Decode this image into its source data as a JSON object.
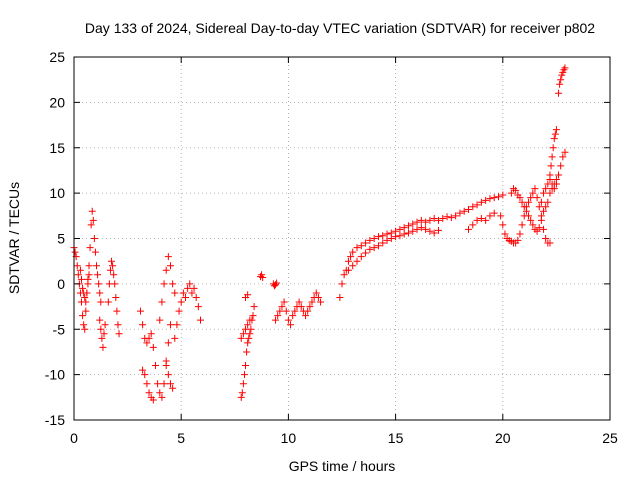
{
  "chart_data": {
    "type": "scatter",
    "title": "Day 133 of 2024, Sidereal Day-to-day VTEC variation (SDTVAR) for receiver p802",
    "xlabel": "GPS time / hours",
    "ylabel": "SDTVAR / TECUs",
    "xlim": [
      0,
      25
    ],
    "ylim": [
      -15,
      25
    ],
    "xticks": [
      0,
      5,
      10,
      15,
      20,
      25
    ],
    "yticks": [
      -15,
      -10,
      -5,
      0,
      5,
      10,
      15,
      20,
      25
    ],
    "grid": true,
    "marker": "plus",
    "color": "#ff0000",
    "segments": [
      {
        "x": [
          0.0,
          0.05,
          0.1,
          0.15,
          0.2,
          0.25,
          0.3,
          0.35,
          0.4,
          0.45,
          0.5,
          0.55,
          0.6,
          0.65,
          0.7,
          0.75,
          0.8,
          0.85,
          0.9,
          0.95,
          1.0,
          1.05,
          1.1,
          1.15,
          1.2,
          1.25
        ],
        "y": [
          4.0,
          3.5,
          3.0,
          2.0,
          1.0,
          0.0,
          -1.0,
          -2.0,
          -3.5,
          -4.5,
          -5.0,
          -3.0,
          -1.0,
          0.5,
          2.0,
          4.0,
          6.5,
          8.0,
          7.0,
          5.0,
          3.5,
          2.0,
          1.0,
          0.0,
          -1.0,
          -2.0
        ]
      },
      {
        "x": [
          0.3,
          0.35,
          0.4,
          0.45,
          0.5,
          0.55,
          0.6,
          0.65,
          0.7
        ],
        "y": [
          1.5,
          0.5,
          -0.5,
          -1.0,
          -1.5,
          -2.0,
          -1.0,
          0.0,
          1.0
        ]
      },
      {
        "x": [
          1.2,
          1.25,
          1.3,
          1.35,
          1.4,
          1.45
        ],
        "y": [
          -4.0,
          -5.0,
          -6.0,
          -7.0,
          -5.5,
          -4.5
        ]
      },
      {
        "x": [
          1.6,
          1.65,
          1.7,
          1.75,
          1.8,
          1.85,
          1.9,
          1.95,
          2.0,
          2.05,
          2.1
        ],
        "y": [
          -2.0,
          0.0,
          1.5,
          2.5,
          2.0,
          1.0,
          0.0,
          -1.5,
          -3.0,
          -4.5,
          -5.5
        ]
      },
      {
        "x": [
          3.1,
          3.2,
          3.3,
          3.4,
          3.5,
          3.6,
          3.7,
          3.8,
          3.9,
          4.0,
          4.1,
          4.2,
          4.3,
          4.4,
          4.5
        ],
        "y": [
          -3.0,
          -4.5,
          -6.0,
          -6.5,
          -6.0,
          -5.5,
          -7.0,
          -9.0,
          -11.0,
          -12.0,
          -12.5,
          -11.0,
          -8.5,
          -6.5,
          -4.5
        ]
      },
      {
        "x": [
          3.2,
          3.3,
          3.4,
          3.5,
          3.6,
          3.7
        ],
        "y": [
          -9.5,
          -10.0,
          -11.0,
          -12.0,
          -12.5,
          -12.8
        ]
      },
      {
        "x": [
          4.0,
          4.1,
          4.2,
          4.3,
          4.4,
          4.5,
          4.6,
          4.7
        ],
        "y": [
          -4.0,
          -2.0,
          0.0,
          1.5,
          3.0,
          2.0,
          0.0,
          -1.0
        ]
      },
      {
        "x": [
          4.3,
          4.4,
          4.5,
          4.6
        ],
        "y": [
          -9.0,
          -10.0,
          -11.0,
          -11.5
        ]
      },
      {
        "x": [
          4.7,
          4.8,
          4.9,
          5.0,
          5.1,
          5.2,
          5.3,
          5.4,
          5.5,
          5.6,
          5.7,
          5.8,
          5.9
        ],
        "y": [
          -6.0,
          -4.5,
          -3.0,
          -2.0,
          -1.0,
          -1.5,
          -0.5,
          0.0,
          -1.0,
          -0.5,
          -1.5,
          -2.5,
          -4.0
        ]
      },
      {
        "x": [
          7.8,
          7.85,
          7.9,
          7.95,
          8.0,
          8.05,
          8.1,
          8.15,
          8.2,
          8.25,
          8.3,
          8.35,
          8.4
        ],
        "y": [
          -12.5,
          -12.0,
          -11.0,
          -10.0,
          -9.0,
          -7.5,
          -6.5,
          -6.0,
          -5.5,
          -5.0,
          -4.0,
          -3.5,
          -2.5
        ]
      },
      {
        "x": [
          7.8,
          7.9,
          8.0,
          8.1,
          8.2
        ],
        "y": [
          -6.0,
          -5.5,
          -5.0,
          -4.5,
          -4.0
        ]
      },
      {
        "x": [
          8.0,
          8.1
        ],
        "y": [
          -1.5,
          -1.2
        ]
      },
      {
        "x": [
          8.7,
          8.75,
          8.8
        ],
        "y": [
          0.8,
          1.0,
          0.7
        ]
      },
      {
        "x": [
          9.3,
          9.35,
          9.4,
          9.45
        ],
        "y": [
          0.0,
          -0.2,
          -0.1,
          0.1
        ]
      },
      {
        "x": [
          9.4,
          9.5,
          9.6,
          9.7,
          9.8,
          9.9,
          10.0,
          10.1,
          10.2,
          10.3,
          10.4,
          10.5,
          10.6,
          10.7,
          10.8,
          10.9,
          11.0,
          11.1,
          11.2,
          11.3,
          11.4,
          11.5
        ],
        "y": [
          -4.0,
          -3.5,
          -3.0,
          -2.5,
          -2.0,
          -3.0,
          -4.0,
          -4.5,
          -3.5,
          -3.0,
          -2.5,
          -2.0,
          -2.5,
          -3.0,
          -3.5,
          -3.0,
          -2.5,
          -2.0,
          -1.5,
          -1.0,
          -1.5,
          -2.0
        ]
      },
      {
        "x": [
          12.4,
          12.5,
          12.6,
          12.7,
          12.8,
          12.9,
          13.0,
          13.2,
          13.4,
          13.6,
          13.8,
          14.0,
          14.2,
          14.4,
          14.6,
          14.8,
          15.0,
          15.2,
          15.4,
          15.6,
          15.8,
          16.0,
          16.2,
          16.4,
          16.6,
          16.8,
          17.0,
          17.2,
          17.4,
          17.6,
          17.8,
          18.0,
          18.2,
          18.4,
          18.6,
          18.8,
          19.0,
          19.2,
          19.4,
          19.6,
          19.8,
          20.0
        ],
        "y": [
          -1.5,
          0.0,
          1.0,
          1.5,
          2.5,
          3.0,
          3.5,
          4.0,
          4.2,
          4.5,
          4.8,
          5.0,
          5.2,
          5.3,
          5.5,
          5.6,
          5.8,
          6.0,
          6.2,
          6.4,
          6.6,
          6.8,
          7.0,
          6.8,
          7.0,
          7.2,
          7.0,
          7.2,
          7.4,
          7.3,
          7.5,
          7.8,
          8.0,
          8.2,
          8.5,
          8.7,
          9.0,
          9.2,
          9.4,
          9.5,
          9.6,
          9.8
        ]
      },
      {
        "x": [
          12.8,
          13.0,
          13.2,
          13.4,
          13.6,
          13.8,
          14.0,
          14.2,
          14.4,
          14.6,
          14.8,
          15.0,
          15.2,
          15.4,
          15.6,
          15.8,
          16.0,
          16.2,
          16.4,
          16.6,
          16.8,
          17.0
        ],
        "y": [
          1.5,
          2.0,
          2.5,
          3.0,
          3.4,
          3.8,
          4.0,
          4.2,
          4.5,
          4.8,
          5.0,
          5.2,
          5.3,
          5.5,
          5.6,
          5.8,
          6.0,
          6.2,
          6.0,
          5.8,
          5.6,
          5.9
        ]
      },
      {
        "x": [
          18.4,
          18.6,
          18.8,
          19.0,
          19.2,
          19.4,
          19.6
        ],
        "y": [
          6.0,
          6.5,
          7.0,
          7.2,
          7.0,
          7.5,
          7.8
        ]
      },
      {
        "x": [
          19.9,
          20.0,
          20.1,
          20.2,
          20.3,
          20.4,
          20.5,
          20.6,
          20.7,
          20.8,
          20.9,
          21.0,
          21.1,
          21.2,
          21.3,
          21.4,
          21.5,
          21.6,
          21.7,
          21.8,
          21.9,
          22.0,
          22.1,
          22.2
        ],
        "y": [
          7.5,
          6.5,
          5.5,
          5.0,
          4.8,
          4.7,
          4.5,
          4.5,
          4.8,
          5.5,
          6.5,
          7.5,
          8.5,
          9.0,
          9.5,
          10.0,
          10.5,
          9.5,
          8.5,
          7.5,
          6.0,
          5.0,
          4.5,
          4.5
        ]
      },
      {
        "x": [
          20.4,
          20.5,
          20.6,
          20.7,
          20.8,
          20.9,
          21.0,
          21.1,
          21.2,
          21.3,
          21.4,
          21.5,
          21.6,
          21.7,
          21.8,
          21.9,
          22.0,
          22.1,
          22.2,
          22.3,
          22.4,
          22.5
        ],
        "y": [
          10.0,
          10.5,
          10.3,
          9.8,
          9.5,
          9.0,
          8.5,
          8.0,
          7.5,
          7.0,
          6.5,
          6.0,
          5.8,
          6.2,
          7.0,
          8.0,
          8.5,
          9.0,
          10.0,
          10.5,
          11.0,
          11.5
        ]
      },
      {
        "x": [
          21.8,
          21.9,
          22.0,
          22.1,
          22.2,
          22.3,
          22.4,
          22.5,
          22.6,
          22.7,
          22.8,
          22.9
        ],
        "y": [
          9.0,
          10.0,
          10.5,
          11.0,
          11.5,
          11.0,
          10.5,
          11.0,
          12.0,
          13.0,
          14.0,
          14.5
        ]
      },
      {
        "x": [
          22.2,
          22.25,
          22.3,
          22.35,
          22.4,
          22.45,
          22.5
        ],
        "y": [
          12.0,
          13.0,
          14.0,
          15.0,
          16.0,
          16.5,
          17.0
        ]
      },
      {
        "x": [
          22.6,
          22.65,
          22.7,
          22.75,
          22.8,
          22.85,
          22.9
        ],
        "y": [
          21.0,
          22.0,
          22.5,
          23.0,
          23.3,
          23.6,
          23.8
        ]
      }
    ]
  }
}
